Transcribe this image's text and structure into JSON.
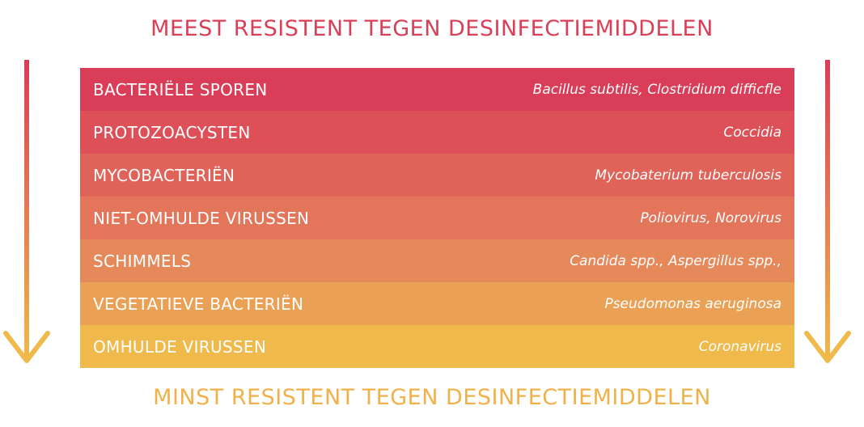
{
  "title_top": "MEEST RESISTENT TEGEN DESINFECTIEMIDDELEN",
  "title_bottom": "MINST RESISTENT TEGEN DESINFECTIEMIDDELEN",
  "colors": {
    "top": "#d93f56",
    "bottom": "#f0b14a",
    "rows": [
      "#d93d57",
      "#dd5058",
      "#e06359",
      "#e3755a",
      "#e6895a",
      "#eaa055",
      "#f0b94b"
    ]
  },
  "rows": [
    {
      "name": "BACTERIËLE SPOREN",
      "example": "Bacillus subtilis, Clostridium difficfle"
    },
    {
      "name": "PROTOZOACYSTEN",
      "example": "Coccidia"
    },
    {
      "name": "MYCOBACTERIËN",
      "example": "Mycobaterium tuberculosis"
    },
    {
      "name": "NIET-OMHULDE VIRUSSEN",
      "example": "Poliovirus, Norovirus"
    },
    {
      "name": "SCHIMMELS",
      "example": "Candida spp., Aspergillus spp.,"
    },
    {
      "name": "VEGETATIEVE BACTERIËN",
      "example": "Pseudomonas aeruginosa"
    },
    {
      "name": "OMHULDE VIRUSSEN",
      "example": "Coronavirus"
    }
  ]
}
